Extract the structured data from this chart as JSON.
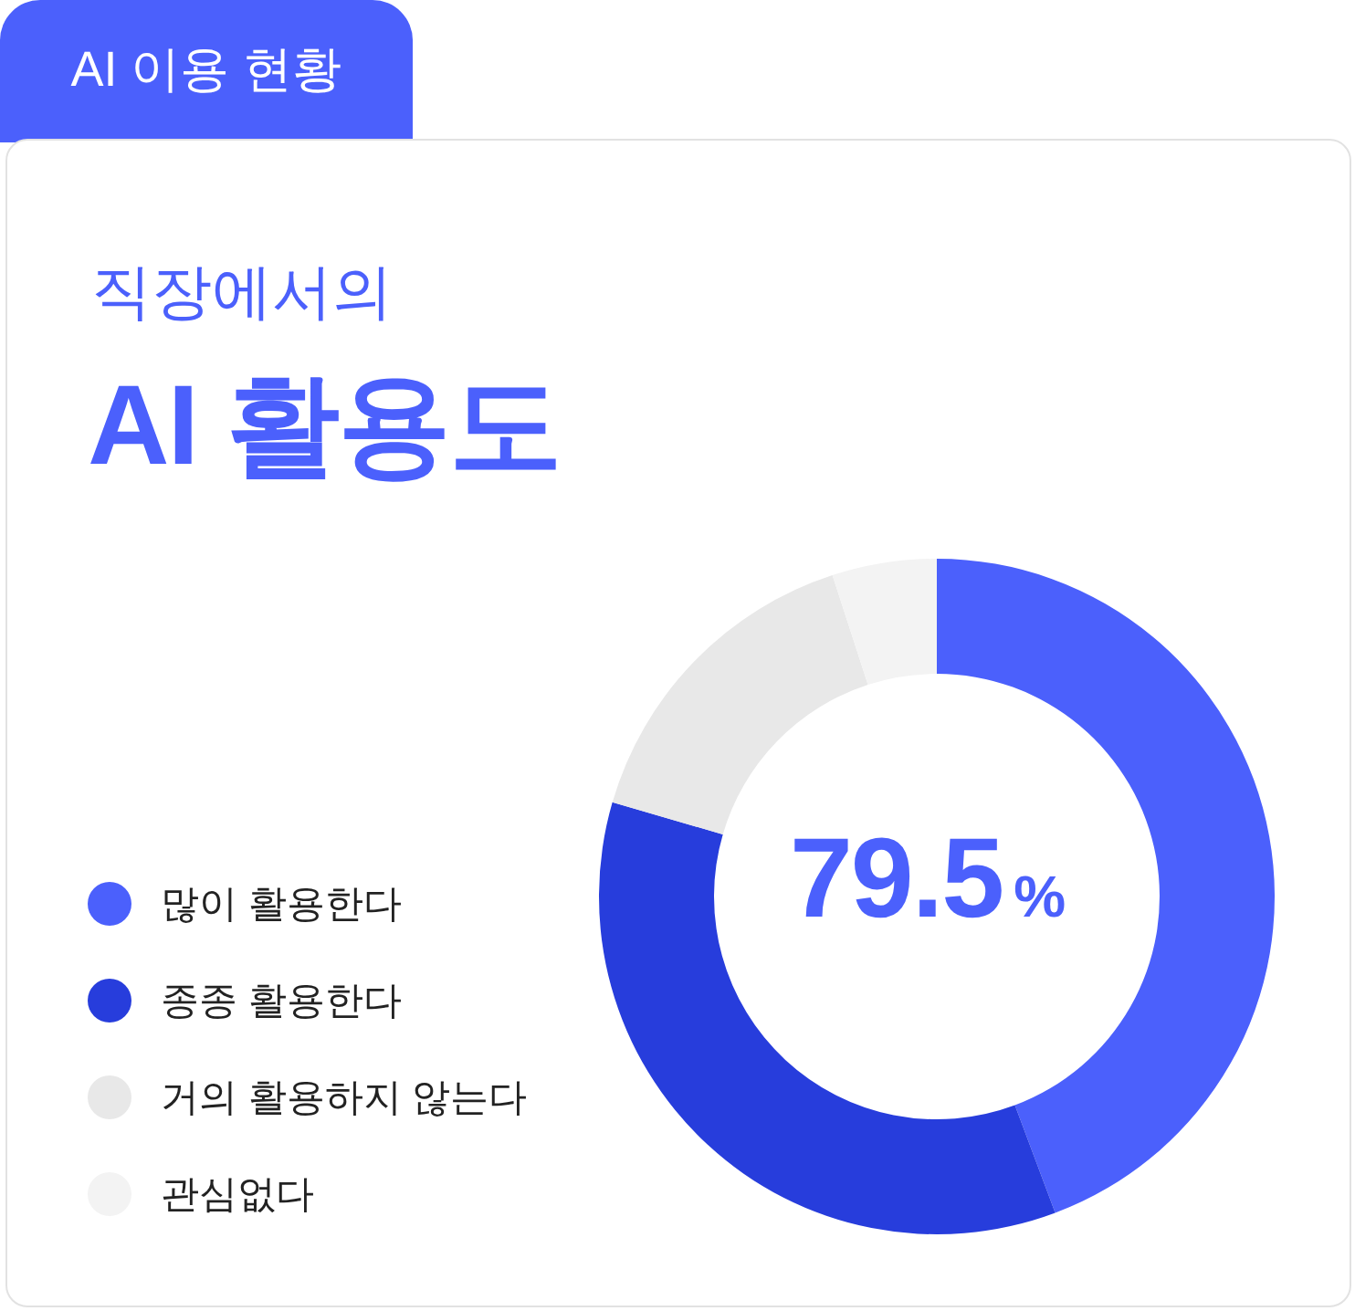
{
  "chart_data": {
    "type": "donut",
    "title": "AI 활용도",
    "subtitle": "직장에서의",
    "annotations": [
      "AI 이용 현황",
      "79.5%"
    ],
    "categories": [
      "많이 활용한다",
      "종종 활용한다",
      "거의 활용하지 않는다",
      "관심없다"
    ],
    "values": [
      44.3,
      35.2,
      15.5,
      5.0
    ],
    "colors": [
      "#4b60fc",
      "#273ddc",
      "#e8e8e8",
      "#f3f3f3"
    ],
    "legend": "left"
  }
}
